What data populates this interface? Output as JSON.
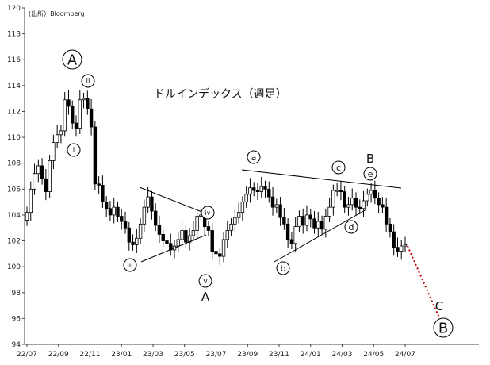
{
  "chart_data": {
    "type": "candlestick",
    "title": "ドルインデックス（週足）",
    "source": "(出所）Bloomberg",
    "ylim": [
      94,
      120
    ],
    "yticks": [
      "94",
      "96",
      "98",
      "100",
      "102",
      "104",
      "106",
      "108",
      "110",
      "112",
      "114",
      "116",
      "118",
      "120"
    ],
    "xticks": [
      "22/07",
      "22/09",
      "22/11",
      "23/01",
      "23/03",
      "23/05",
      "23/07",
      "23/09",
      "23/11",
      "24/01",
      "24/03",
      "24/05",
      "24/07"
    ],
    "close": [
      104.2,
      106.0,
      107.2,
      107.8,
      106.8,
      105.8,
      108.2,
      109.6,
      110.2,
      110.5,
      112.9,
      112.4,
      111.1,
      110.7,
      112.9,
      113.0,
      112.2,
      110.8,
      106.4,
      106.3,
      105.0,
      104.5,
      104.0,
      104.6,
      103.9,
      103.5,
      103.0,
      101.9,
      101.7,
      102.2,
      103.3,
      104.6,
      105.4,
      104.3,
      103.2,
      102.5,
      102.0,
      101.8,
      101.3,
      101.6,
      102.1,
      102.8,
      101.9,
      102.4,
      102.8,
      103.9,
      104.0,
      103.1,
      102.8,
      101.2,
      101.0,
      100.8,
      102.1,
      102.8,
      103.3,
      103.8,
      104.2,
      105.0,
      105.6,
      106.1,
      105.9,
      105.8,
      106.2,
      106.0,
      105.4,
      104.6,
      104.8,
      103.8,
      103.3,
      102.1,
      101.8,
      103.1,
      103.9,
      103.2,
      104.0,
      103.7,
      103.0,
      103.5,
      102.9,
      103.9,
      104.6,
      105.9,
      105.9,
      105.8,
      104.6,
      104.8,
      105.3,
      104.6,
      104.5,
      105.1,
      105.6,
      105.9,
      105.3,
      104.8,
      104.6,
      103.3,
      102.7,
      101.5,
      101.2,
      101.6,
      101.7
    ],
    "annotations": {
      "wave_A_high": "A",
      "wave_A_low": "A",
      "wave_B": "B",
      "wave_C": "C",
      "wave_B_target": "B",
      "sub_i": "i",
      "sub_ii": "ii",
      "sub_iii": "iii",
      "sub_iv": "iv",
      "sub_v": "v",
      "sub_a": "a",
      "sub_b": "b",
      "sub_c": "c",
      "sub_d": "d",
      "sub_e": "e"
    },
    "colors": {
      "up": "#ffffff",
      "down": "#000000",
      "projection": "#c00000"
    }
  }
}
